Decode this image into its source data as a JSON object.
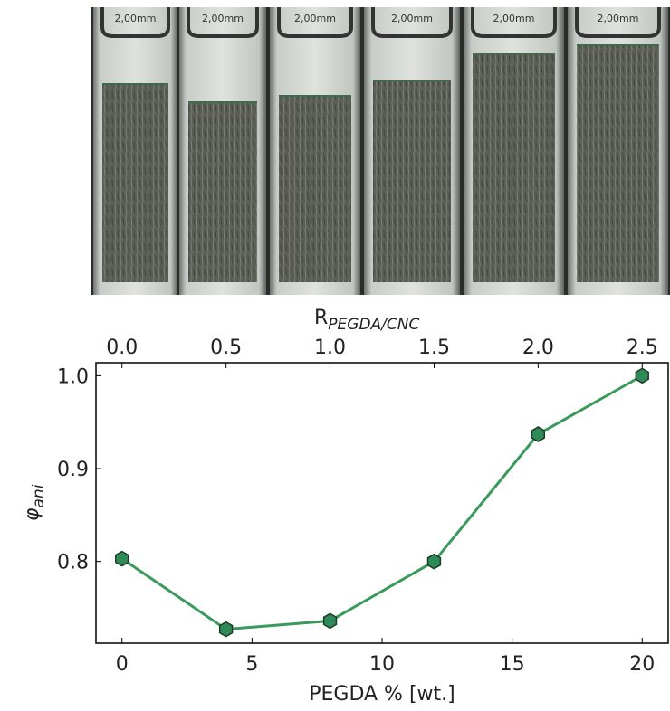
{
  "photo": {
    "vial_labels": [
      "2,00mm",
      "2,00mm",
      "2,00mm",
      "2,00mm",
      "2,00mm",
      "2,00mm"
    ]
  },
  "chart_data": {
    "type": "line",
    "x_label": "PEGDA % [wt.]",
    "y_label": "φ",
    "y_label_sub": "ani",
    "x2_label": "R",
    "x2_label_sub": "PEGDA/CNC",
    "x": [
      0,
      4,
      8,
      12,
      16,
      20
    ],
    "series": [
      {
        "name": "φani",
        "color": "#3a9a5c",
        "marker_color": "#2e8b57",
        "values": [
          0.803,
          0.727,
          0.736,
          0.8,
          0.937,
          1.0
        ]
      }
    ],
    "xlim": [
      -1,
      21
    ],
    "xticks": [
      0,
      5,
      10,
      15,
      20
    ],
    "ylim": [
      0.712,
      1.014
    ],
    "yticks": [
      {
        "value": 0.8,
        "label": "0.8"
      },
      {
        "value": 0.9,
        "label": "0.9"
      },
      {
        "value": 1.0,
        "label": "1.0"
      }
    ],
    "x2lim": [
      -0.125,
      2.625
    ],
    "x2ticks": [
      {
        "value": 0,
        "label": "0.0"
      },
      {
        "value": 0.5,
        "label": "0.5"
      },
      {
        "value": 1.0,
        "label": "1.0"
      },
      {
        "value": 1.5,
        "label": "1.5"
      },
      {
        "value": 2.0,
        "label": "2.0"
      },
      {
        "value": 2.5,
        "label": "2.5"
      }
    ]
  }
}
